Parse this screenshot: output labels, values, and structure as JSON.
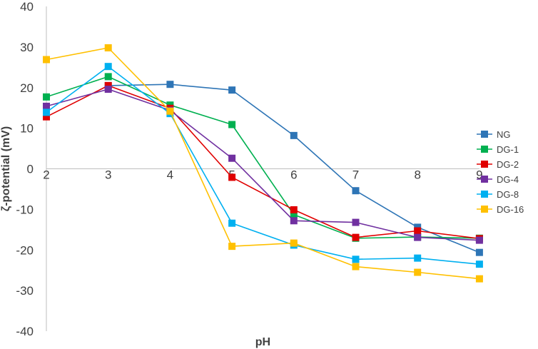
{
  "chart_data": {
    "type": "line",
    "title": "",
    "xlabel": "pH",
    "ylabel": "ζ-potential (mV)",
    "x": [
      2,
      3,
      4,
      5,
      6,
      7,
      8,
      9
    ],
    "ylim": [
      -40,
      40
    ],
    "yticks": [
      40,
      30,
      20,
      10,
      0,
      -10,
      -20,
      -30,
      -40
    ],
    "grid": false,
    "legend_position": "right",
    "series": [
      {
        "name": "NG",
        "color": "#2E75B6",
        "x": [
          3,
          4,
          5,
          6,
          7,
          8,
          9
        ],
        "values": [
          20.5,
          20.8,
          19.4,
          8.2,
          -5.4,
          -14.4,
          -20.6
        ]
      },
      {
        "name": "DG-1",
        "color": "#00B050",
        "x": [
          2,
          3,
          4,
          5,
          6,
          7,
          8,
          9
        ],
        "values": [
          17.7,
          22.7,
          15.7,
          10.9,
          -11.3,
          -17.1,
          -16.8,
          -17.1
        ]
      },
      {
        "name": "DG-2",
        "color": "#E00000",
        "x": [
          2,
          3,
          4,
          5,
          6,
          7,
          8,
          9
        ],
        "values": [
          12.8,
          20.5,
          14.9,
          -2.1,
          -10.1,
          -16.9,
          -15.3,
          -17.2
        ]
      },
      {
        "name": "DG-4",
        "color": "#7030A0",
        "x": [
          2,
          3,
          4,
          5,
          6,
          7,
          8,
          9
        ],
        "values": [
          15.4,
          19.6,
          14.4,
          2.6,
          -12.8,
          -13.2,
          -16.9,
          -17.6
        ]
      },
      {
        "name": "DG-8",
        "color": "#00B0F0",
        "x": [
          2,
          3,
          4,
          5,
          6,
          7,
          8,
          9
        ],
        "values": [
          13.9,
          25.2,
          13.6,
          -13.4,
          -18.8,
          -22.3,
          -22.0,
          -23.5
        ]
      },
      {
        "name": "DG-16",
        "color": "#FFC000",
        "x": [
          2,
          3,
          4,
          5,
          6,
          7,
          8,
          9
        ],
        "values": [
          26.9,
          29.8,
          14.2,
          -19.1,
          -18.3,
          -24.1,
          -25.5,
          -27.1
        ]
      }
    ]
  }
}
